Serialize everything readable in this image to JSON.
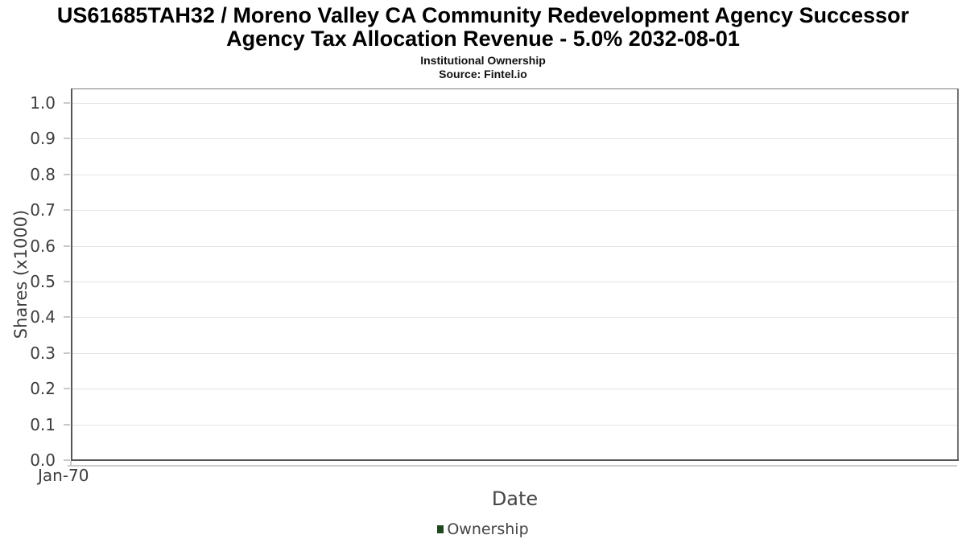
{
  "header": {
    "title": "US61685TAH32 / Moreno Valley CA Community Redevelopment Agency Successor Agency Tax Allocation Revenue - 5.0% 2032-08-01",
    "title_lines": [
      "US61685TAH32 / Moreno Valley CA Community Redevelopment Agency Successor",
      "Agency Tax Allocation Revenue - 5.0% 2032-08-01"
    ],
    "subtitle": "Institutional Ownership",
    "source": "Source: Fintel.io"
  },
  "chart_data": {
    "type": "line",
    "title": "US61685TAH32 / Moreno Valley CA Community Redevelopment Agency Successor Agency Tax Allocation Revenue - 5.0% 2032-08-01",
    "subtitle": "Institutional Ownership",
    "source": "Source: Fintel.io",
    "xlabel": "Date",
    "ylabel": "Shares (x1000)",
    "ylim": [
      0.0,
      1.0
    ],
    "yticks": [
      0.0,
      0.1,
      0.2,
      0.3,
      0.4,
      0.5,
      0.6,
      0.7,
      0.8,
      0.9,
      1.0
    ],
    "ytick_labels": [
      "0.0",
      "0.1",
      "0.2",
      "0.3",
      "0.4",
      "0.5",
      "0.6",
      "0.7",
      "0.8",
      "0.9",
      "1.0"
    ],
    "xtick_labels": [
      "Jan-70"
    ],
    "grid": true,
    "legend_position": "bottom",
    "series": [
      {
        "name": "Ownership",
        "color": "#1f4722",
        "x": [],
        "values": []
      }
    ]
  },
  "colors": {
    "frame_top": "#7a7a7a",
    "frame_right": "#737373",
    "axis_dark": "#555555",
    "gridline": "#e4e4e4",
    "tick_mark": "#c9c9c9",
    "shadow": "#cdcdcd",
    "legend_swatch": "#1f4722"
  }
}
